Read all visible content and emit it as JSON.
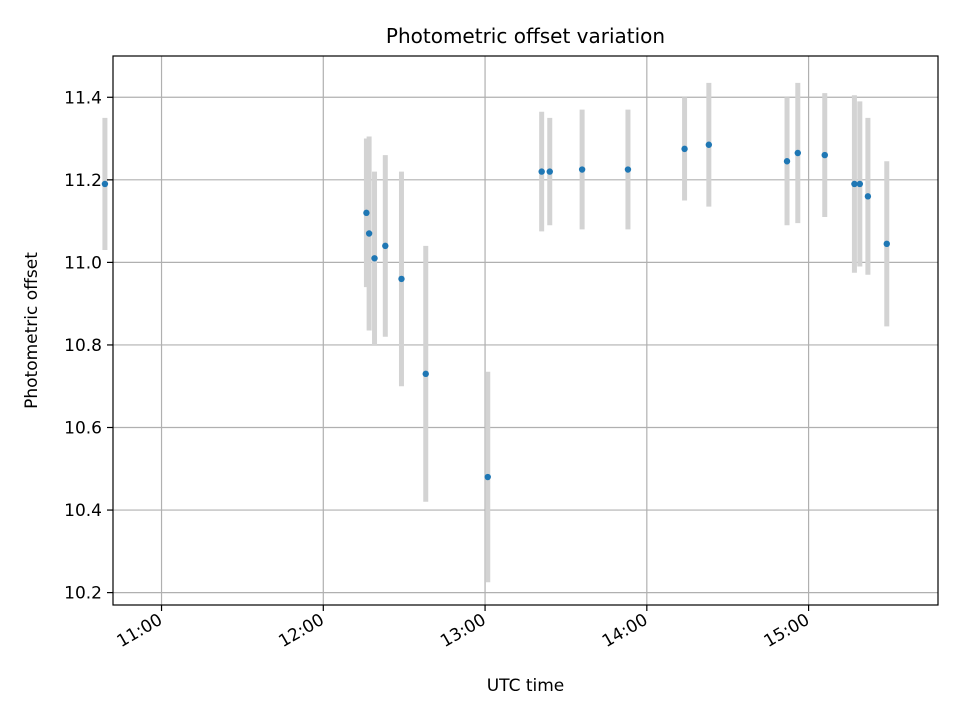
{
  "chart_data": {
    "type": "scatter",
    "title": "Photometric offset variation",
    "xlabel": "UTC time",
    "ylabel": "Photometric offset",
    "x_unit": "UTC time (HH:MM)",
    "xlim": [
      "10:42",
      "15:48"
    ],
    "ylim": [
      10.17,
      11.5
    ],
    "x_ticks": [
      "11:00",
      "12:00",
      "13:00",
      "14:00",
      "15:00"
    ],
    "y_ticks": [
      10.2,
      10.4,
      10.6,
      10.8,
      11.0,
      11.2,
      11.4
    ],
    "y_tick_labels": [
      "10.2",
      "10.4",
      "10.6",
      "10.8",
      "11.0",
      "11.2",
      "11.4"
    ],
    "grid": true,
    "point_color": "#1f77b4",
    "errorbar_color": "#d3d3d3",
    "points": [
      {
        "x": "10:39",
        "y": 11.19,
        "err": 0.16
      },
      {
        "x": "12:16",
        "y": 11.12,
        "err": 0.18
      },
      {
        "x": "12:17",
        "y": 11.07,
        "err": 0.235
      },
      {
        "x": "12:19",
        "y": 11.01,
        "err": 0.21
      },
      {
        "x": "12:23",
        "y": 11.04,
        "err": 0.22
      },
      {
        "x": "12:29",
        "y": 10.96,
        "err": 0.26
      },
      {
        "x": "12:38",
        "y": 10.73,
        "err": 0.31
      },
      {
        "x": "13:01",
        "y": 10.48,
        "err": 0.255
      },
      {
        "x": "13:21",
        "y": 11.22,
        "err": 0.145
      },
      {
        "x": "13:24",
        "y": 11.22,
        "err": 0.13
      },
      {
        "x": "13:36",
        "y": 11.225,
        "err": 0.145
      },
      {
        "x": "13:53",
        "y": 11.225,
        "err": 0.145
      },
      {
        "x": "14:14",
        "y": 11.275,
        "err": 0.125
      },
      {
        "x": "14:23",
        "y": 11.285,
        "err": 0.15
      },
      {
        "x": "14:52",
        "y": 11.245,
        "err": 0.155
      },
      {
        "x": "14:56",
        "y": 11.265,
        "err": 0.17
      },
      {
        "x": "15:06",
        "y": 11.26,
        "err": 0.15
      },
      {
        "x": "15:17",
        "y": 11.19,
        "err": 0.215
      },
      {
        "x": "15:19",
        "y": 11.19,
        "err": 0.2
      },
      {
        "x": "15:22",
        "y": 11.16,
        "err": 0.19
      },
      {
        "x": "15:29",
        "y": 11.045,
        "err": 0.2
      }
    ]
  }
}
